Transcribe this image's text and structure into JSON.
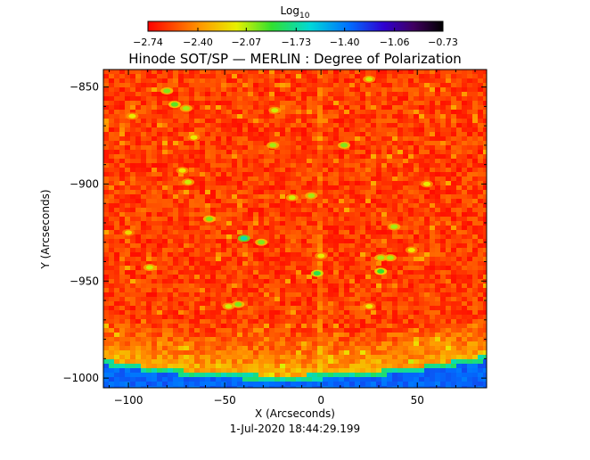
{
  "chart_data": {
    "type": "heatmap",
    "title": "Hinode SOT/SP — MERLIN : Degree of Polarization",
    "xlabel": "X (Arcseconds)",
    "ylabel": "Y (Arcseconds)",
    "footer": "1-Jul-2020 18:44:29.199",
    "xlim": [
      -113,
      86
    ],
    "ylim": [
      -1005,
      -841
    ],
    "x_ticks": [
      -100,
      -50,
      0,
      50
    ],
    "x_tick_labels": [
      "−100",
      "−50",
      "0",
      "50"
    ],
    "y_ticks": [
      -850,
      -900,
      -950,
      -1000
    ],
    "y_tick_labels": [
      "−850",
      "−900",
      "−950",
      "−1000"
    ],
    "colorbar": {
      "label_base": "Log",
      "label_sub": "10",
      "range": [
        -2.74,
        -0.73
      ],
      "colormap": "rainbow (red → yellow → green → cyan → blue → violet → black)",
      "ticks": [
        -2.74,
        -2.4,
        -2.07,
        -1.73,
        -1.4,
        -1.06,
        -0.73
      ],
      "tick_labels": [
        "−2.74",
        "−2.40",
        "−2.07",
        "−1.73",
        "−1.40",
        "−1.06",
        "−0.73"
      ]
    },
    "description_values": {
      "background_level": -2.6,
      "limb_level": -1.35,
      "limb_x_center": -20,
      "limb_y_at_center": -1000,
      "limb_curvature": 0.0009
    },
    "features": [
      {
        "x": -80,
        "y": -852,
        "v": -2.0
      },
      {
        "x": -76,
        "y": -859,
        "v": -1.95
      },
      {
        "x": -70,
        "y": -861,
        "v": -2.05
      },
      {
        "x": -98,
        "y": -865,
        "v": -2.15
      },
      {
        "x": -66,
        "y": -876,
        "v": -2.15
      },
      {
        "x": -24,
        "y": -862,
        "v": -2.1
      },
      {
        "x": -25,
        "y": -880,
        "v": -2.05
      },
      {
        "x": 12,
        "y": -880,
        "v": -2.0
      },
      {
        "x": 25,
        "y": -846,
        "v": -2.1
      },
      {
        "x": -69,
        "y": -899,
        "v": -2.1
      },
      {
        "x": -72,
        "y": -893,
        "v": -2.15
      },
      {
        "x": -58,
        "y": -918,
        "v": -2.0
      },
      {
        "x": -40,
        "y": -928,
        "v": -1.7
      },
      {
        "x": -31,
        "y": -930,
        "v": -2.0
      },
      {
        "x": -15,
        "y": -907,
        "v": -2.1
      },
      {
        "x": -5,
        "y": -906,
        "v": -2.05
      },
      {
        "x": 0,
        "y": -937,
        "v": -2.15
      },
      {
        "x": -2,
        "y": -946,
        "v": -1.85
      },
      {
        "x": 36,
        "y": -938,
        "v": -2.05
      },
      {
        "x": 31,
        "y": -938,
        "v": -2.05
      },
      {
        "x": 31,
        "y": -945,
        "v": -1.9
      },
      {
        "x": 38,
        "y": -922,
        "v": -2.05
      },
      {
        "x": 55,
        "y": -900,
        "v": -2.15
      },
      {
        "x": -89,
        "y": -943,
        "v": -2.1
      },
      {
        "x": -48,
        "y": -963,
        "v": -2.1
      },
      {
        "x": -43,
        "y": -962,
        "v": -2.0
      },
      {
        "x": -100,
        "y": -925,
        "v": -2.2
      },
      {
        "x": 25,
        "y": -963,
        "v": -2.15
      },
      {
        "x": 47,
        "y": -934,
        "v": -2.15
      }
    ]
  }
}
